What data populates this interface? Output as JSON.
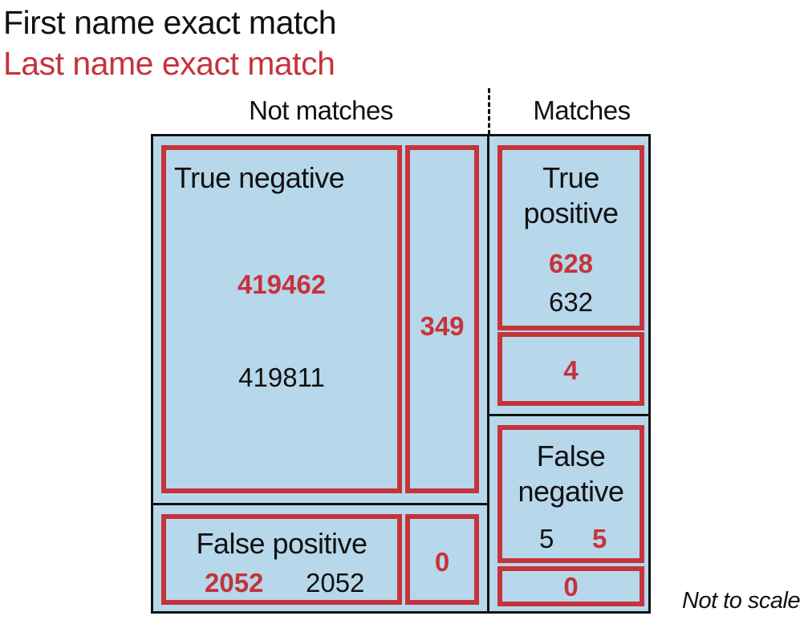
{
  "legend": {
    "first_name": "First name exact match",
    "last_name": "Last name exact match"
  },
  "columns": {
    "not_matches": "Not matches",
    "matches": "Matches"
  },
  "cells": {
    "true_negative": {
      "label": "True negative",
      "last_name_value": "419462",
      "first_name_value": "419811"
    },
    "true_negative_diff": {
      "value": "349"
    },
    "true_positive": {
      "label_line1": "True",
      "label_line2": "positive",
      "last_name_value": "628",
      "first_name_value": "632"
    },
    "true_positive_diff": {
      "value": "4"
    },
    "false_positive": {
      "label": "False positive",
      "last_name_value": "2052",
      "first_name_value": "2052"
    },
    "false_positive_diff": {
      "value": "0"
    },
    "false_negative": {
      "label_line1": "False",
      "label_line2": "negative",
      "first_name_value": "5",
      "last_name_value": "5"
    },
    "false_negative_diff": {
      "value": "0"
    }
  },
  "note": "Not to scale",
  "colors": {
    "first_name": "#111111",
    "last_name": "#c5333b",
    "cell_fill": "#b7d7ea"
  }
}
